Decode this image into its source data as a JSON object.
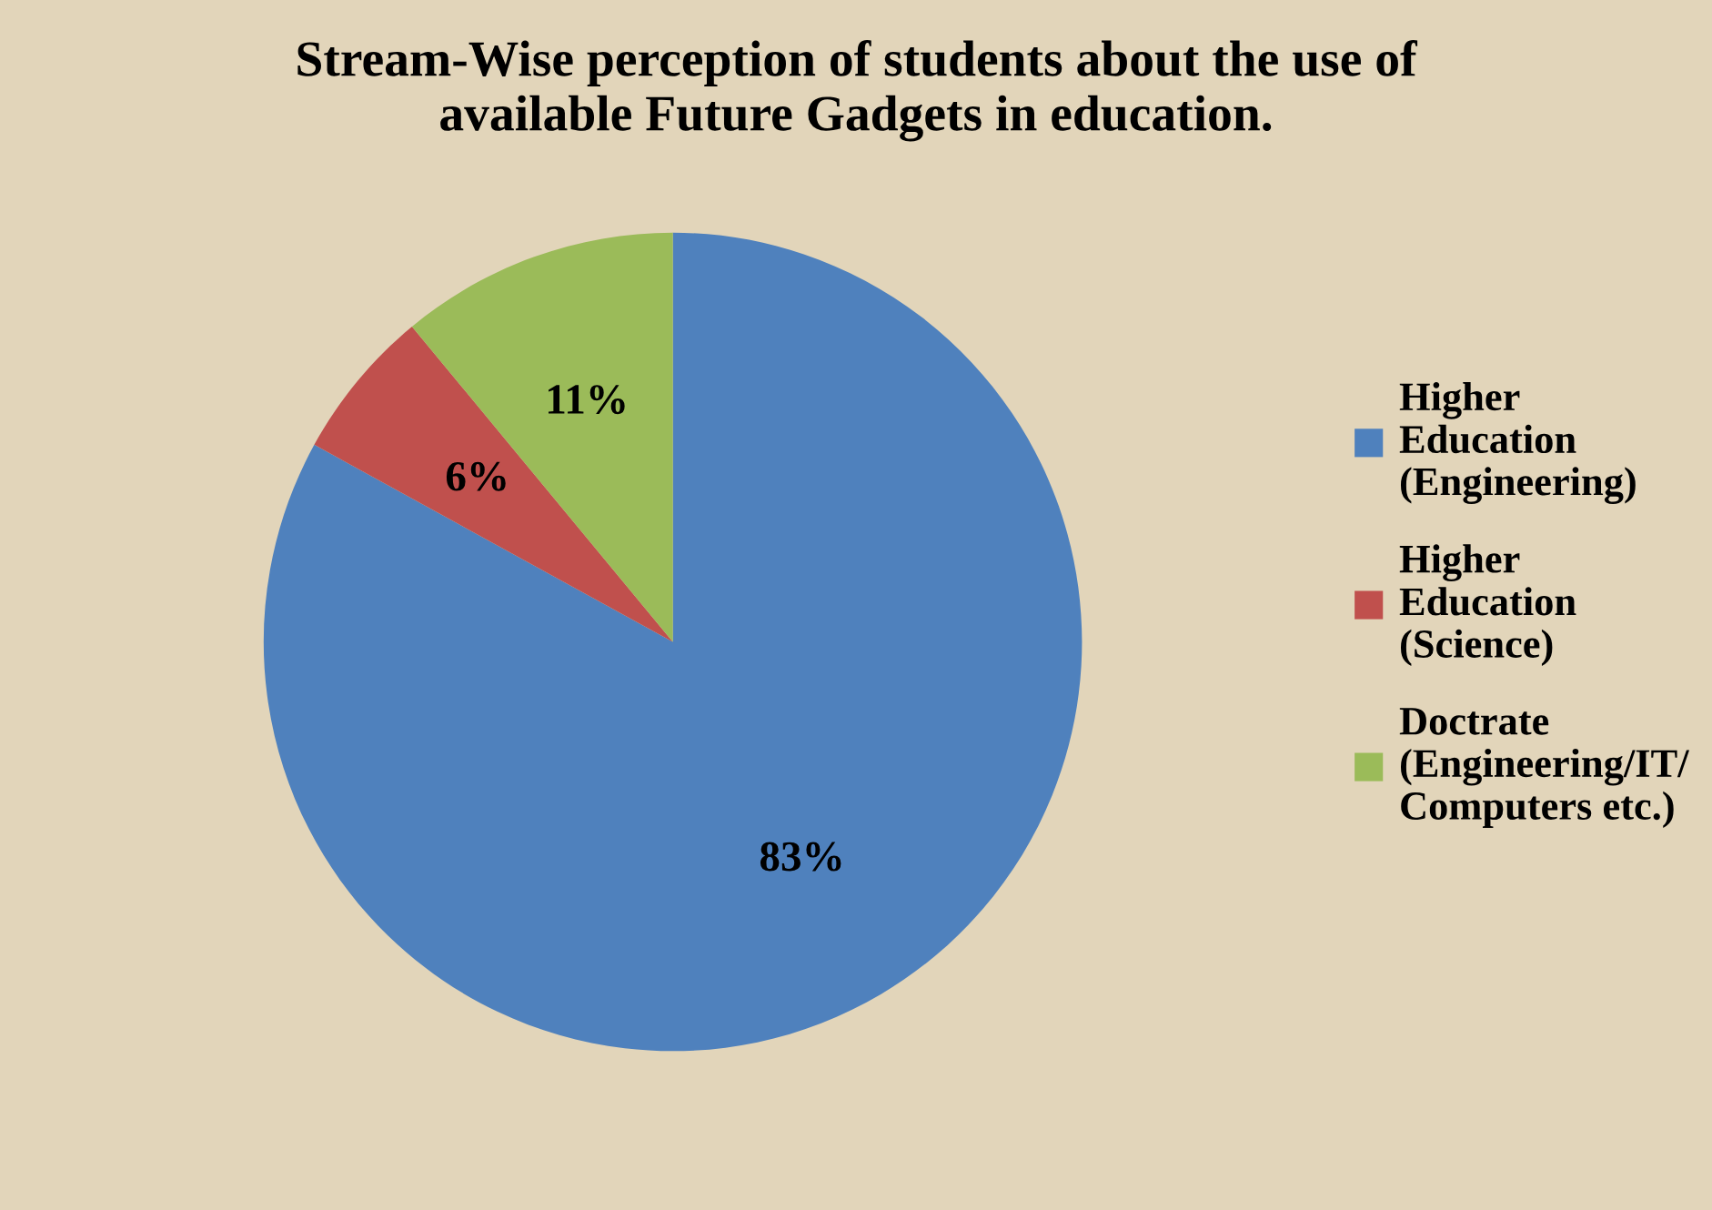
{
  "chart_data": {
    "type": "pie",
    "title": "Stream-Wise perception of students about the use of\navailable Future Gadgets in education.",
    "categories": [
      "Higher\nEducation\n(Engineering)",
      "Higher\nEducation\n(Science)",
      "Doctrate\n(Engineering/IT/\nComputers etc.)"
    ],
    "values": [
      83,
      6,
      11
    ],
    "value_labels": [
      "83%",
      "6%",
      "11%"
    ],
    "colors": [
      "#4f81bd",
      "#c0504d",
      "#9bbb59"
    ],
    "legend": "right"
  }
}
